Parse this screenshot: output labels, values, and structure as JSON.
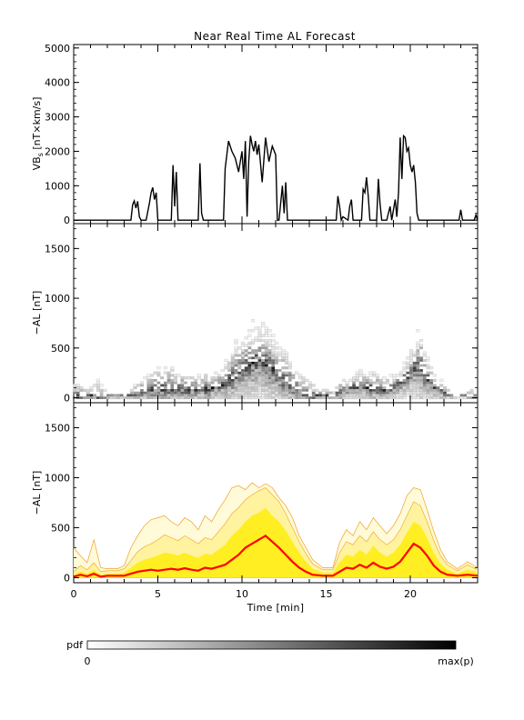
{
  "title": "Near Real Time AL Forecast",
  "colors": {
    "axis": "#000000",
    "vbs_line": "#000000",
    "median_line": "#ff0000",
    "band_inner": "#ffee22",
    "band_middle": "#fff3a0",
    "band_outer": "#fffad8",
    "band_edge": "#f0a020"
  },
  "colorbar": {
    "label": "pdf",
    "min_label": "0",
    "max_label": "max(p)"
  },
  "chart_data": [
    {
      "id": "vbs",
      "type": "line",
      "ylabel": "VBs [nT×km/s]",
      "ylabel_main": "VB",
      "ylabel_sub": "s",
      "ylabel_rest": " [nT×km/s]",
      "xlim": [
        0,
        24
      ],
      "ylim": [
        -100,
        5100
      ],
      "yticks": [
        0,
        1000,
        2000,
        3000,
        4000,
        5000
      ],
      "ytick_labels": [
        "0",
        "1000",
        "2000",
        "3000",
        "4000",
        "5000"
      ],
      "xticks": [
        0,
        5,
        10,
        15,
        20
      ],
      "series": [
        {
          "x": [
            0,
            3.4,
            3.5,
            3.6,
            3.7,
            3.8,
            3.9,
            4.0,
            4.3,
            4.5,
            4.6,
            4.7,
            4.8,
            4.9,
            5.0,
            5.1,
            5.8,
            5.9,
            6.0,
            6.1,
            6.2,
            7.4,
            7.5,
            7.6,
            7.7,
            8.9,
            9.0,
            9.2,
            9.4,
            9.6,
            9.8,
            10.0,
            10.1,
            10.2,
            10.3,
            10.4,
            10.5,
            10.6,
            10.7,
            10.8,
            10.9,
            11.0,
            11.2,
            11.4,
            11.6,
            11.8,
            12.0,
            12.1,
            12.2,
            12.4,
            12.5,
            12.6,
            12.7,
            12.8,
            15.6,
            15.7,
            15.8,
            15.9,
            16.0,
            16.3,
            16.4,
            16.5,
            16.6,
            17.1,
            17.2,
            17.3,
            17.4,
            17.5,
            17.6,
            18.0,
            18.1,
            18.2,
            18.3,
            18.6,
            18.8,
            18.9,
            19.0,
            19.1,
            19.2,
            19.3,
            19.4,
            19.5,
            19.6,
            19.7,
            19.8,
            19.9,
            20.0,
            20.1,
            20.2,
            20.3,
            20.4,
            20.5,
            20.6,
            20.7,
            22.9,
            23.0,
            23.1,
            23.8,
            23.9,
            24.0
          ],
          "y": [
            0,
            0,
            450,
            560,
            350,
            550,
            100,
            0,
            0,
            500,
            800,
            950,
            600,
            800,
            0,
            0,
            0,
            1600,
            400,
            1400,
            0,
            0,
            1650,
            200,
            0,
            0,
            1500,
            2300,
            2000,
            1800,
            1400,
            2000,
            1200,
            2300,
            100,
            1700,
            2450,
            2200,
            2000,
            2300,
            1900,
            2200,
            1100,
            2400,
            1700,
            2150,
            1900,
            0,
            0,
            1000,
            200,
            1100,
            0,
            0,
            0,
            700,
            400,
            0,
            100,
            0,
            400,
            600,
            0,
            0,
            900,
            800,
            1250,
            700,
            0,
            0,
            1200,
            500,
            0,
            0,
            400,
            0,
            300,
            600,
            100,
            800,
            2400,
            1200,
            2450,
            2400,
            2000,
            2100,
            1600,
            1400,
            1600,
            1100,
            200,
            0,
            0,
            0,
            0,
            300,
            0,
            0,
            150,
            0
          ]
        }
      ]
    },
    {
      "id": "al-pdf",
      "type": "heatmap",
      "ylabel": "−AL [nT]",
      "xlim": [
        0,
        24
      ],
      "ylim": [
        -50,
        1750
      ],
      "yticks": [
        0,
        500,
        1000,
        1500
      ],
      "ytick_labels": [
        "0",
        "500",
        "1000",
        "1500"
      ],
      "xticks": [
        0,
        5,
        10,
        15,
        20
      ],
      "envelope": {
        "x": [
          0,
          0.5,
          1.0,
          1.4,
          2.0,
          3.2,
          3.6,
          4.2,
          5.0,
          5.6,
          6.2,
          6.8,
          7.4,
          8.0,
          8.6,
          9.0,
          9.6,
          10.0,
          10.6,
          11.0,
          11.4,
          11.8,
          12.2,
          12.6,
          13.0,
          13.6,
          15.4,
          15.9,
          16.4,
          16.9,
          17.4,
          17.9,
          18.4,
          18.9,
          19.4,
          19.9,
          20.3,
          20.6,
          21.0,
          21.6,
          22.6,
          23.2,
          23.6,
          24.0
        ],
        "y": [
          250,
          200,
          150,
          330,
          60,
          60,
          200,
          280,
          450,
          550,
          350,
          400,
          300,
          420,
          350,
          500,
          800,
          750,
          900,
          850,
          900,
          800,
          650,
          700,
          500,
          350,
          100,
          300,
          200,
          350,
          330,
          400,
          300,
          320,
          300,
          500,
          700,
          900,
          550,
          300,
          60,
          60,
          150,
          100
        ]
      },
      "median": {
        "x": [
          0,
          1.5,
          2.0,
          3.4,
          4.0,
          5.0,
          6.0,
          7.0,
          8.0,
          9.0,
          9.5,
          10.0,
          10.5,
          11.0,
          11.5,
          12.0,
          12.5,
          13.0,
          13.5,
          14.0,
          15.5,
          16.0,
          16.5,
          17.0,
          17.5,
          18.0,
          18.5,
          19.0,
          19.5,
          20.0,
          20.3,
          20.6,
          21.0,
          21.5,
          22.0,
          22.5,
          24.0
        ],
        "y": [
          20,
          20,
          10,
          20,
          60,
          90,
          90,
          80,
          90,
          130,
          200,
          270,
          340,
          380,
          320,
          260,
          180,
          110,
          60,
          20,
          20,
          80,
          100,
          120,
          100,
          90,
          80,
          100,
          150,
          250,
          320,
          300,
          200,
          100,
          50,
          20,
          20
        ]
      }
    },
    {
      "id": "al-forecast",
      "type": "area",
      "ylabel": "−AL [nT]",
      "xlabel": "Time [min]",
      "xlim": [
        0,
        24
      ],
      "ylim": [
        -50,
        1750
      ],
      "yticks": [
        0,
        500,
        1000,
        1500
      ],
      "ytick_labels": [
        "0",
        "500",
        "1000",
        "1500"
      ],
      "xticks": [
        0,
        5,
        10,
        15,
        20
      ],
      "xtick_labels": [
        "0",
        "5",
        "10",
        "15",
        "20"
      ],
      "x": [
        0,
        0.4,
        0.8,
        1.2,
        1.6,
        2.0,
        2.6,
        3.0,
        3.4,
        3.8,
        4.2,
        4.6,
        5.0,
        5.4,
        5.8,
        6.2,
        6.6,
        7.0,
        7.4,
        7.8,
        8.2,
        8.6,
        9.0,
        9.4,
        9.8,
        10.2,
        10.6,
        11.0,
        11.4,
        11.8,
        12.2,
        12.6,
        13.0,
        13.4,
        13.8,
        14.2,
        14.8,
        15.4,
        15.8,
        16.2,
        16.6,
        17.0,
        17.4,
        17.8,
        18.2,
        18.6,
        19.0,
        19.4,
        19.8,
        20.2,
        20.6,
        21.0,
        21.4,
        21.8,
        22.2,
        22.8,
        23.4,
        24.0
      ],
      "median": [
        10,
        30,
        15,
        40,
        10,
        20,
        20,
        20,
        40,
        60,
        70,
        80,
        70,
        80,
        90,
        80,
        95,
        80,
        70,
        100,
        90,
        110,
        130,
        180,
        230,
        300,
        340,
        380,
        420,
        360,
        300,
        230,
        160,
        100,
        60,
        30,
        20,
        20,
        60,
        100,
        90,
        130,
        100,
        150,
        110,
        90,
        110,
        160,
        250,
        340,
        300,
        220,
        120,
        60,
        30,
        20,
        30,
        20
      ],
      "q_inner": [
        30,
        60,
        40,
        80,
        30,
        40,
        40,
        50,
        100,
        150,
        180,
        200,
        220,
        250,
        240,
        220,
        250,
        220,
        200,
        240,
        230,
        280,
        330,
        420,
        480,
        560,
        620,
        650,
        700,
        620,
        560,
        470,
        360,
        250,
        160,
        90,
        50,
        50,
        150,
        230,
        210,
        280,
        230,
        320,
        250,
        210,
        250,
        330,
        450,
        560,
        520,
        400,
        250,
        140,
        80,
        40,
        80,
        50
      ],
      "q_outer": [
        60,
        120,
        80,
        150,
        60,
        70,
        70,
        90,
        170,
        260,
        310,
        340,
        380,
        430,
        400,
        370,
        420,
        380,
        340,
        400,
        380,
        460,
        540,
        640,
        700,
        780,
        830,
        870,
        900,
        830,
        760,
        640,
        500,
        360,
        240,
        140,
        80,
        80,
        250,
        360,
        330,
        420,
        360,
        460,
        380,
        330,
        380,
        480,
        620,
        760,
        720,
        560,
        370,
        220,
        130,
        70,
        130,
        80
      ],
      "q_max": [
        300,
        220,
        150,
        380,
        100,
        90,
        90,
        120,
        300,
        420,
        520,
        580,
        600,
        620,
        560,
        520,
        600,
        560,
        480,
        620,
        560,
        680,
        780,
        900,
        920,
        880,
        950,
        900,
        940,
        900,
        800,
        720,
        600,
        420,
        300,
        180,
        100,
        100,
        350,
        480,
        420,
        560,
        480,
        600,
        520,
        440,
        520,
        640,
        820,
        900,
        880,
        680,
        460,
        280,
        160,
        90,
        160,
        100
      ]
    }
  ]
}
